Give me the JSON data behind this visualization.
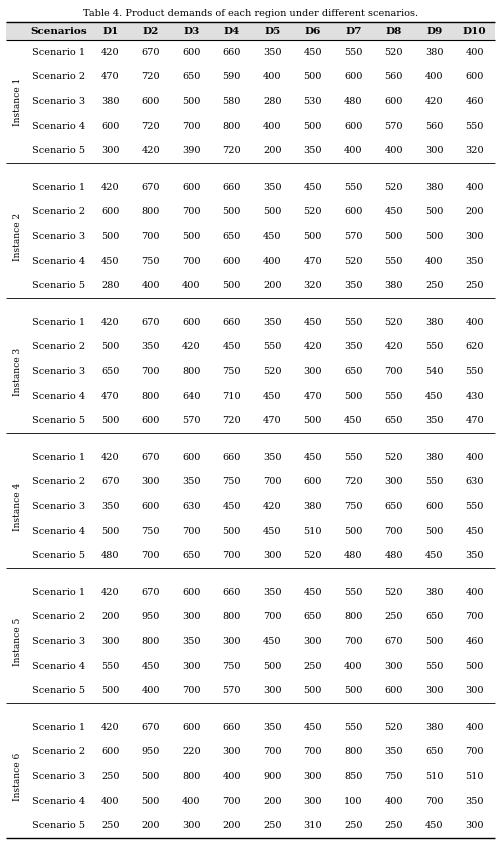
{
  "title": "Table 4. Product demands of each region under different scenarios.",
  "columns": [
    "Scenarios",
    "D1",
    "D2",
    "D3",
    "D4",
    "D5",
    "D6",
    "D7",
    "D8",
    "D9",
    "D10"
  ],
  "instances": [
    {
      "name": "Instance 1",
      "scenarios": [
        [
          "Scenario 1",
          420,
          670,
          600,
          660,
          350,
          450,
          550,
          520,
          380,
          400
        ],
        [
          "Scenario 2",
          470,
          720,
          650,
          590,
          400,
          500,
          600,
          560,
          400,
          600
        ],
        [
          "Scenario 3",
          380,
          600,
          500,
          580,
          280,
          530,
          480,
          600,
          420,
          460
        ],
        [
          "Scenario 4",
          600,
          720,
          700,
          800,
          400,
          500,
          600,
          570,
          560,
          550
        ],
        [
          "Scenario 5",
          300,
          420,
          390,
          720,
          200,
          350,
          400,
          400,
          300,
          320
        ]
      ]
    },
    {
      "name": "Instance 2",
      "scenarios": [
        [
          "Scenario 1",
          420,
          670,
          600,
          660,
          350,
          450,
          550,
          520,
          380,
          400
        ],
        [
          "Scenario 2",
          600,
          800,
          700,
          500,
          500,
          520,
          600,
          450,
          500,
          200
        ],
        [
          "Scenario 3",
          500,
          700,
          500,
          650,
          450,
          500,
          570,
          500,
          500,
          300
        ],
        [
          "Scenario 4",
          450,
          750,
          700,
          600,
          400,
          470,
          520,
          550,
          400,
          350
        ],
        [
          "Scenario 5",
          280,
          400,
          400,
          500,
          200,
          320,
          350,
          380,
          250,
          250
        ]
      ]
    },
    {
      "name": "Instance 3",
      "scenarios": [
        [
          "Scenario 1",
          420,
          670,
          600,
          660,
          350,
          450,
          550,
          520,
          380,
          400
        ],
        [
          "Scenario 2",
          500,
          350,
          420,
          450,
          550,
          420,
          350,
          420,
          550,
          620
        ],
        [
          "Scenario 3",
          650,
          700,
          800,
          750,
          520,
          300,
          650,
          700,
          540,
          550
        ],
        [
          "Scenario 4",
          470,
          800,
          640,
          710,
          450,
          470,
          500,
          550,
          450,
          430
        ],
        [
          "Scenario 5",
          500,
          600,
          570,
          720,
          470,
          500,
          450,
          650,
          350,
          470
        ]
      ]
    },
    {
      "name": "Instance 4",
      "scenarios": [
        [
          "Scenario 1",
          420,
          670,
          600,
          660,
          350,
          450,
          550,
          520,
          380,
          400
        ],
        [
          "Scenario 2",
          670,
          300,
          350,
          750,
          700,
          600,
          720,
          300,
          550,
          630
        ],
        [
          "Scenario 3",
          350,
          600,
          630,
          450,
          420,
          380,
          750,
          650,
          600,
          550
        ],
        [
          "Scenario 4",
          500,
          750,
          700,
          500,
          450,
          510,
          500,
          700,
          500,
          450
        ],
        [
          "Scenario 5",
          480,
          700,
          650,
          700,
          300,
          520,
          480,
          480,
          450,
          350
        ]
      ]
    },
    {
      "name": "Instance 5",
      "scenarios": [
        [
          "Scenario 1",
          420,
          670,
          600,
          660,
          350,
          450,
          550,
          520,
          380,
          400
        ],
        [
          "Scenario 2",
          200,
          950,
          300,
          800,
          700,
          650,
          800,
          250,
          650,
          700
        ],
        [
          "Scenario 3",
          300,
          800,
          350,
          300,
          450,
          300,
          700,
          670,
          500,
          460
        ],
        [
          "Scenario 4",
          550,
          450,
          300,
          750,
          500,
          250,
          400,
          300,
          550,
          500
        ],
        [
          "Scenario 5",
          500,
          400,
          700,
          570,
          300,
          500,
          500,
          600,
          300,
          300
        ]
      ]
    },
    {
      "name": "Instance 6",
      "scenarios": [
        [
          "Scenario 1",
          420,
          670,
          600,
          660,
          350,
          450,
          550,
          520,
          380,
          400
        ],
        [
          "Scenario 2",
          600,
          950,
          220,
          300,
          700,
          700,
          800,
          350,
          650,
          700
        ],
        [
          "Scenario 3",
          250,
          500,
          800,
          400,
          900,
          300,
          850,
          750,
          510,
          510
        ],
        [
          "Scenario 4",
          400,
          500,
          400,
          700,
          200,
          300,
          100,
          400,
          700,
          350
        ],
        [
          "Scenario 5",
          250,
          200,
          300,
          200,
          250,
          310,
          250,
          250,
          450,
          300
        ]
      ]
    }
  ],
  "title_fontsize": 7.0,
  "header_fontsize": 7.5,
  "cell_fontsize": 7.0,
  "instance_label_fontsize": 6.5,
  "header_bg": "#e0e0e0",
  "text_color": "#000000",
  "fig_width": 5.01,
  "fig_height": 8.44,
  "dpi": 100
}
